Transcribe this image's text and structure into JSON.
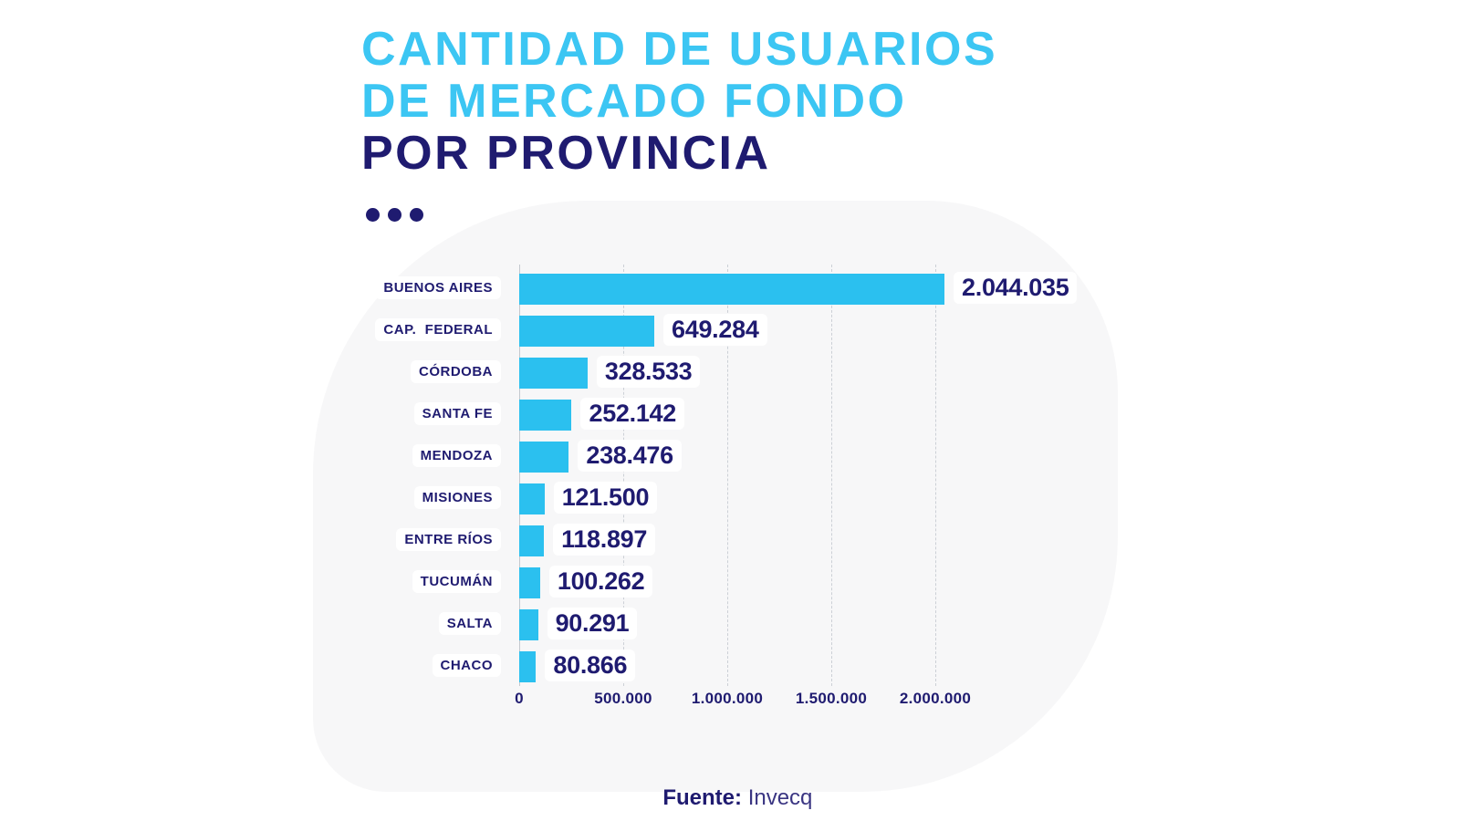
{
  "title": {
    "line1": "CANTIDAD DE USUARIOS",
    "line2": "DE MERCADO FONDO",
    "line3": "POR PROVINCIA"
  },
  "footer": {
    "source_label": "Fuente:",
    "source_value": "Invecq"
  },
  "colors": {
    "title_cyan": "#3cc6f3",
    "bar_cyan": "#2bc0ef",
    "navy": "#1f1b70",
    "blob_gray": "#f7f7f8",
    "grid_gray": "#ccd0d6",
    "label_box": "#ffffff"
  },
  "chart_data": {
    "type": "bar",
    "orientation": "horizontal",
    "title": "CANTIDAD DE USUARIOS DE MERCADO FONDO POR PROVINCIA",
    "source": "Fuente: Invecq",
    "categories": [
      "BUENOS AIRES",
      "CAP.  FEDERAL",
      "CÓRDOBA",
      "SANTA FE",
      "MENDOZA",
      "MISIONES",
      "ENTRE RÍOS",
      "TUCUMÁN",
      "SALTA",
      "CHACO"
    ],
    "values": [
      2044035,
      649284,
      328533,
      252142,
      238476,
      121500,
      118897,
      100262,
      90291,
      80866
    ],
    "value_labels": [
      "2.044.035",
      "649.284",
      "328.533",
      "252.142",
      "238.476",
      "121.500",
      "118.897",
      "100.262",
      "90.291",
      "80.866"
    ],
    "x_ticks": [
      "0",
      "500.000",
      "1.000.000",
      "1.500.000",
      "2.000.000"
    ],
    "x_tick_values": [
      0,
      500000,
      1000000,
      1500000,
      2000000
    ],
    "xlim": [
      0,
      2150000
    ],
    "grid": "vertical-dashed",
    "legend": "none",
    "bar_color": "#2bc0ef"
  }
}
